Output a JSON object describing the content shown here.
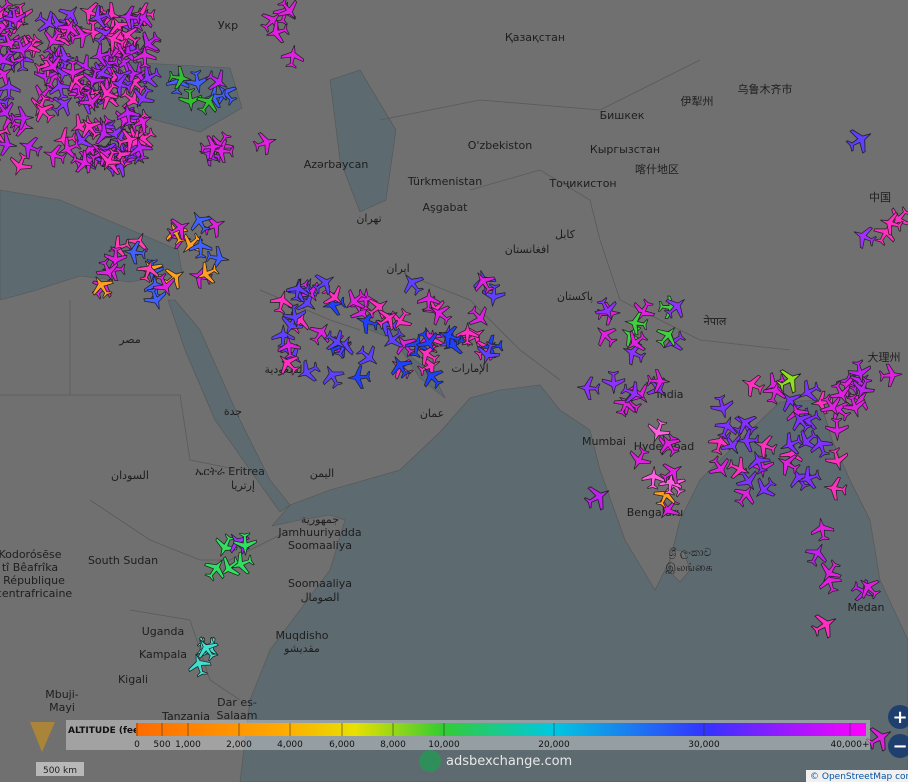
{
  "map": {
    "labels": [
      "Қазақстан",
      "Azərbaycan",
      "Türkmenistan",
      "Aşgabat",
      "O'zbekiston",
      "Бишкек",
      "Кыргызстан",
      "Тоҷикистон",
      "伊犁州",
      "乌鲁木齐市",
      "喀什地区",
      "中国",
      "تهران",
      "ایران",
      "افغانستان",
      "کابل",
      "پاکستان",
      "नेपाल",
      "大理州",
      "مصر",
      "السعودية",
      "جدة",
      "عمان",
      "India",
      "Mumbai",
      "Hyderabad",
      "Bengaluru",
      "ශ්‍රී ලංකාව",
      "இலங்கை",
      "السودان",
      "ኤርትራ Eritrea",
      "إرتريا",
      "اليمن",
      "South Sudan",
      "Kodorósēse",
      "tî Bêafrîka",
      "République",
      "centrafricaine",
      "جمهورية",
      "Jamhuuriyadda",
      "Soomaaliya",
      "Soomaaliya",
      "الصومال",
      "Muqdisho",
      "مقديشو",
      "Uganda",
      "Kampala",
      "Kigali",
      "Mbuji-",
      "Mayi",
      "Tanzania",
      "Dar es-",
      "Salaam",
      "Medan",
      "Укр",
      "الإمارات"
    ]
  },
  "legend": {
    "title": "ALTITUDE (feet)",
    "ticks": [
      "0",
      "500",
      "1,000",
      "2,000",
      "4,000",
      "6,000",
      "8,000",
      "10,000",
      "20,000",
      "30,000",
      "40,000+"
    ]
  },
  "branding": "adsbexchange.com",
  "attribution": "© OpenStreetMap con",
  "scale": "500 km",
  "zoom": {
    "in": "+",
    "out": "−"
  }
}
